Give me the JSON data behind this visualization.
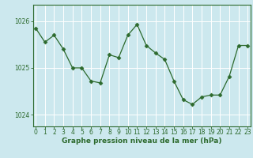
{
  "x": [
    0,
    1,
    2,
    3,
    4,
    5,
    6,
    7,
    8,
    9,
    10,
    11,
    12,
    13,
    14,
    15,
    16,
    17,
    18,
    19,
    20,
    21,
    22,
    23
  ],
  "y": [
    1025.85,
    1025.55,
    1025.7,
    1025.4,
    1025.0,
    1025.0,
    1024.72,
    1024.68,
    1025.28,
    1025.22,
    1025.7,
    1025.93,
    1025.48,
    1025.32,
    1025.18,
    1024.72,
    1024.32,
    1024.22,
    1024.38,
    1024.42,
    1024.42,
    1024.82,
    1025.48,
    1025.48
  ],
  "line_color": "#2d6a2d",
  "marker": "D",
  "marker_size": 2.5,
  "bg_color": "#cce8ee",
  "grid_color": "#ffffff",
  "axis_color": "#2d6a2d",
  "tick_color": "#2d6a2d",
  "ylabel_ticks": [
    1024,
    1025,
    1026
  ],
  "ylim": [
    1023.75,
    1026.35
  ],
  "xlim": [
    -0.3,
    23.3
  ],
  "xlabel": "Graphe pression niveau de la mer (hPa)",
  "xlabel_fontsize": 6.5,
  "tick_fontsize": 5.5
}
